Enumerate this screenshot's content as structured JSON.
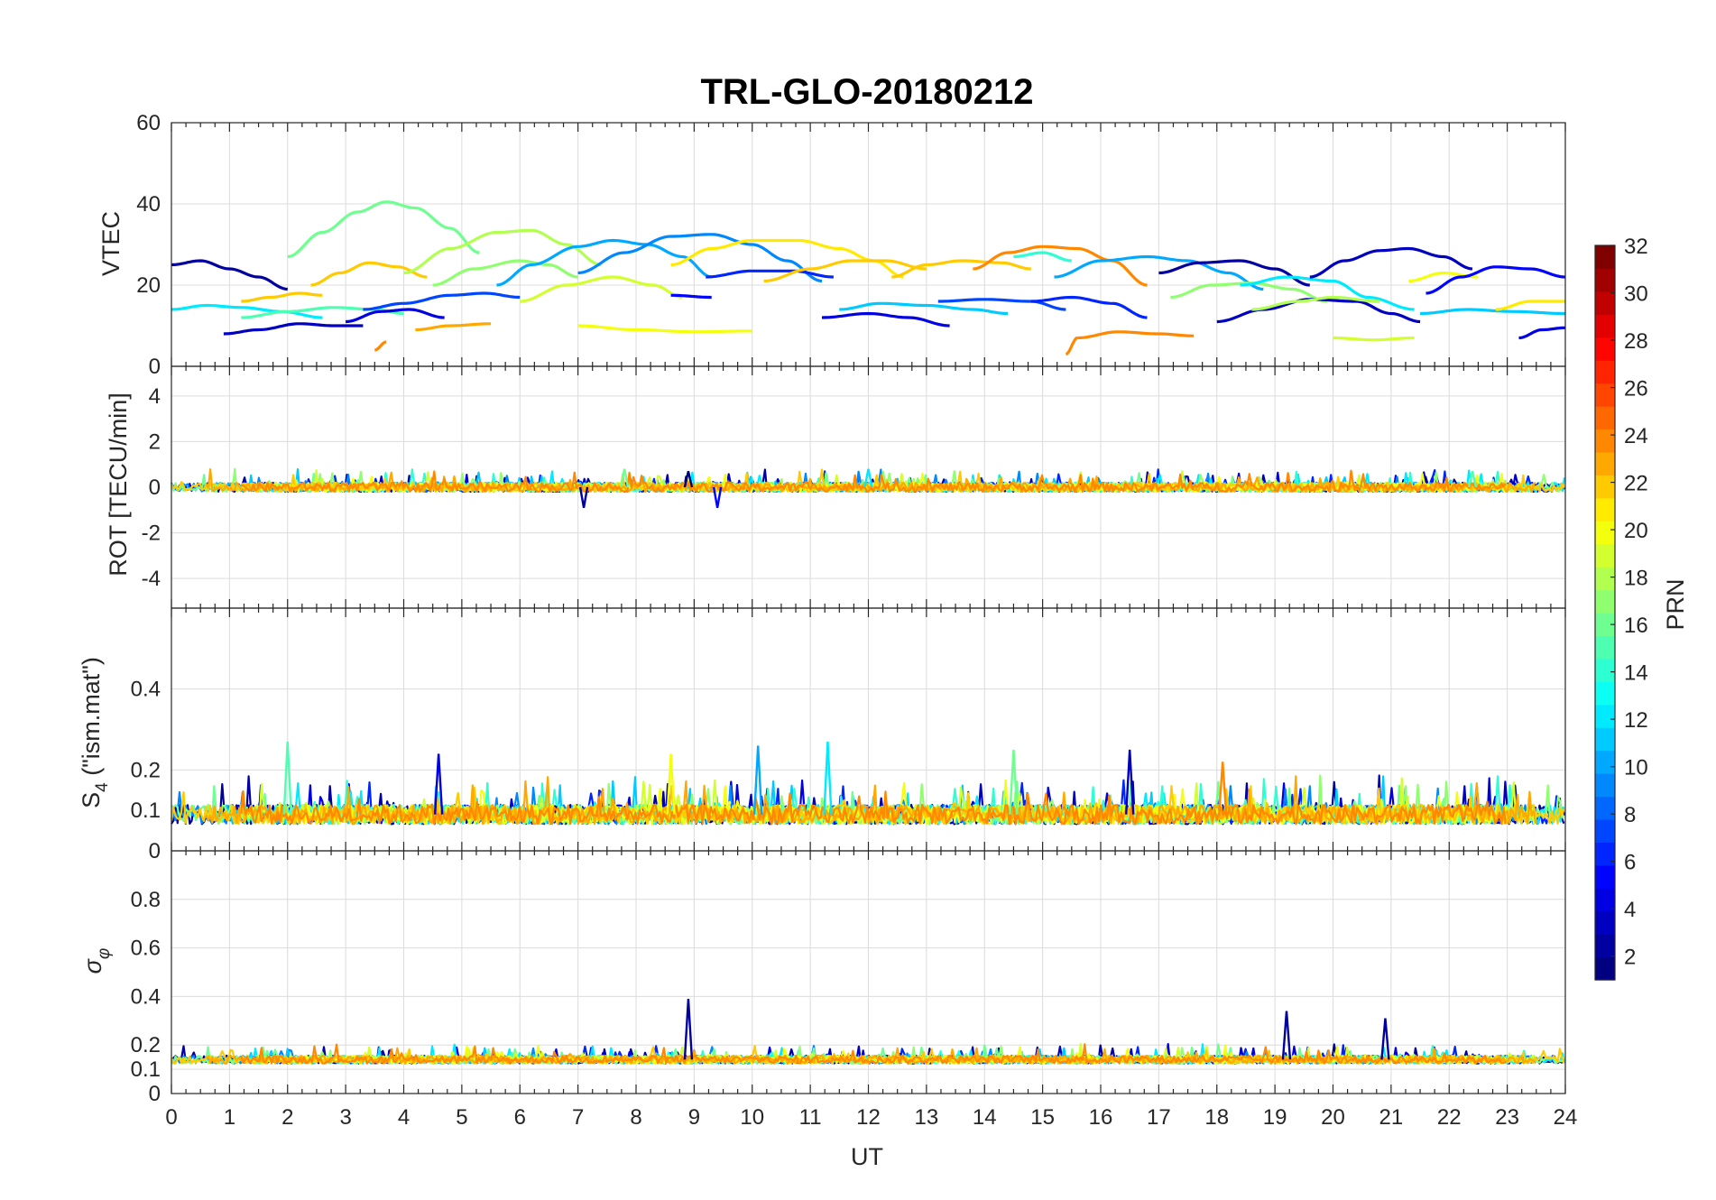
{
  "chart_data": {
    "type": "line",
    "title": "TRL-GLO-20180212",
    "x": {
      "label": "UT",
      "range": [
        0,
        24
      ],
      "ticks": [
        "0",
        "1",
        "2",
        "3",
        "4",
        "5",
        "6",
        "7",
        "8",
        "9",
        "10",
        "11",
        "12",
        "13",
        "14",
        "15",
        "16",
        "17",
        "18",
        "19",
        "20",
        "21",
        "22",
        "23",
        "24"
      ]
    },
    "colorbar": {
      "label": "PRN",
      "range": [
        1,
        32
      ],
      "ticks": [
        "2",
        "4",
        "6",
        "8",
        "10",
        "12",
        "14",
        "16",
        "18",
        "20",
        "22",
        "24",
        "26",
        "28",
        "30",
        "32"
      ],
      "colormap": "jet"
    },
    "panels": [
      {
        "name": "vtec",
        "ylabel": "VTEC",
        "ylim": [
          0,
          60
        ],
        "yticks": [
          "0",
          "20",
          "40",
          "60"
        ],
        "series": [
          {
            "prn": 2,
            "t": [
              0,
              0.5,
              1.0,
              1.5,
              2.0
            ],
            "y": [
              25,
              26,
              24,
              22,
              19
            ]
          },
          {
            "prn": 3,
            "t": [
              0.9,
              1.5,
              2.2,
              2.8,
              3.3
            ],
            "y": [
              8,
              9,
              10.5,
              10,
              10
            ]
          },
          {
            "prn": 12,
            "t": [
              0,
              0.6,
              1.2,
              1.9,
              2.6
            ],
            "y": [
              14,
              15,
              14.5,
              13.5,
              12
            ]
          },
          {
            "prn": 15,
            "t": [
              1.2,
              2.0,
              2.8,
              3.5,
              4.0
            ],
            "y": [
              12,
              13.5,
              14.5,
              14,
              13
            ]
          },
          {
            "prn": 22,
            "t": [
              1.2,
              1.7,
              2.2,
              2.6
            ],
            "y": [
              16,
              17,
              18,
              17.5
            ]
          },
          {
            "prn": 16,
            "t": [
              2.0,
              2.6,
              3.2,
              3.7,
              4.2,
              4.8,
              5.3
            ],
            "y": [
              27,
              33,
              38,
              40.5,
              39,
              34,
              28
            ]
          },
          {
            "prn": 22,
            "t": [
              2.4,
              2.9,
              3.4,
              3.9,
              4.4
            ],
            "y": [
              20,
              23,
              25.5,
              24.5,
              22
            ]
          },
          {
            "prn": 4,
            "t": [
              3.0,
              3.6,
              4.1,
              4.7
            ],
            "y": [
              11,
              13.5,
              14,
              12
            ]
          },
          {
            "prn": 23,
            "t": [
              4.2,
              4.8,
              5.5
            ],
            "y": [
              9,
              10,
              10.5
            ]
          },
          {
            "prn": 24,
            "t": [
              3.5,
              3.7
            ],
            "y": [
              4,
              6
            ]
          },
          {
            "prn": 7,
            "t": [
              3.3,
              4.0,
              4.8,
              5.4,
              6.0
            ],
            "y": [
              14,
              15.5,
              17.5,
              18,
              17
            ]
          },
          {
            "prn": 18,
            "t": [
              4.0,
              4.8,
              5.6,
              6.2,
              6.8,
              7.4
            ],
            "y": [
              23,
              29,
              33,
              33.5,
              30,
              25
            ]
          },
          {
            "prn": 17,
            "t": [
              4.5,
              5.2,
              6.0,
              6.5,
              7.0
            ],
            "y": [
              20,
              24,
              26,
              25,
              22
            ]
          },
          {
            "prn": 10,
            "t": [
              5.6,
              6.2,
              7.0,
              7.6,
              8.2,
              8.8,
              9.3
            ],
            "y": [
              20,
              25,
              29.5,
              31,
              30,
              27,
              22
            ]
          },
          {
            "prn": 19,
            "t": [
              6.0,
              6.8,
              7.6,
              8.3,
              8.8
            ],
            "y": [
              16,
              20,
              22,
              20,
              17
            ]
          },
          {
            "prn": 9,
            "t": [
              7.0,
              7.8,
              8.6,
              9.3,
              10.0,
              10.6,
              11.2
            ],
            "y": [
              23,
              28,
              32,
              32.5,
              30,
              26,
              21
            ]
          },
          {
            "prn": 20,
            "t": [
              7.0,
              8.0,
              9.0,
              10.0
            ],
            "y": [
              10,
              9,
              8.5,
              8.7
            ]
          },
          {
            "prn": 5,
            "t": [
              8.6,
              9.3
            ],
            "y": [
              17.5,
              17
            ]
          },
          {
            "prn": 21,
            "t": [
              8.6,
              9.3,
              10.0,
              10.8,
              11.5,
              12.1,
              12.6
            ],
            "y": [
              25,
              29,
              31,
              31,
              29,
              26,
              22
            ]
          },
          {
            "prn": 6,
            "t": [
              9.2,
              10.0,
              10.7,
              11.4
            ],
            "y": [
              22,
              23.5,
              23.5,
              22
            ]
          },
          {
            "prn": 22,
            "t": [
              10.2,
              11.0,
              11.7,
              12.3,
              13.0
            ],
            "y": [
              21,
              24,
              26,
              26,
              24
            ]
          },
          {
            "prn": 4,
            "t": [
              11.2,
              12.0,
              12.7,
              13.4
            ],
            "y": [
              12,
              13,
              12,
              10
            ]
          },
          {
            "prn": 11,
            "t": [
              11.5,
              12.2,
              13.0,
              13.8,
              14.4
            ],
            "y": [
              14,
              15.5,
              15,
              14,
              13
            ]
          },
          {
            "prn": 22,
            "t": [
              12.4,
              13.0,
              13.6,
              14.3,
              14.8
            ],
            "y": [
              22,
              25,
              26,
              25.5,
              24
            ]
          },
          {
            "prn": 7,
            "t": [
              13.2,
              14.0,
              14.8,
              15.4
            ],
            "y": [
              16,
              16.5,
              16,
              14
            ]
          },
          {
            "prn": 24,
            "t": [
              13.8,
              14.4,
              15.0,
              15.6,
              16.2,
              16.8
            ],
            "y": [
              24,
              28,
              29.5,
              29,
              26,
              20
            ]
          },
          {
            "prn": 14,
            "t": [
              14.5,
              15.0,
              15.5
            ],
            "y": [
              27,
              28,
              26
            ]
          },
          {
            "prn": 10,
            "t": [
              15.2,
              16.0,
              16.8,
              17.5,
              18.2,
              18.8
            ],
            "y": [
              22,
              26,
              27,
              26,
              23,
              19
            ]
          },
          {
            "prn": 24,
            "t": [
              15.4,
              15.6
            ],
            "y": [
              3,
              7
            ]
          },
          {
            "prn": 24,
            "t": [
              15.6,
              16.3,
              17.0,
              17.6
            ],
            "y": [
              7,
              8.5,
              8,
              7.5
            ]
          },
          {
            "prn": 6,
            "t": [
              14.8,
              15.5,
              16.2,
              16.8
            ],
            "y": [
              16,
              17,
              15.5,
              12
            ]
          },
          {
            "prn": 2,
            "t": [
              17.0,
              17.7,
              18.4,
              19.0,
              19.6
            ],
            "y": [
              23,
              25.5,
              26,
              24,
              20
            ]
          },
          {
            "prn": 17,
            "t": [
              17.2,
              17.9,
              18.6,
              19.3,
              19.9
            ],
            "y": [
              17,
              20,
              20.5,
              19,
              16
            ]
          },
          {
            "prn": 3,
            "t": [
              18.0,
              18.8,
              19.6,
              20.4,
              21.0,
              21.5
            ],
            "y": [
              11,
              14,
              16.5,
              16,
              13,
              11
            ]
          },
          {
            "prn": 12,
            "t": [
              18.4,
              19.2,
              20.0,
              20.6,
              21.4
            ],
            "y": [
              20,
              22,
              21,
              17,
              14
            ]
          },
          {
            "prn": 18,
            "t": [
              18.6,
              19.4,
              20.0,
              20.8
            ],
            "y": [
              14,
              16,
              17,
              16
            ]
          },
          {
            "prn": 3,
            "t": [
              19.6,
              20.2,
              20.8,
              21.3,
              21.9,
              22.4
            ],
            "y": [
              22,
              26,
              28.5,
              29,
              27,
              24
            ]
          },
          {
            "prn": 19,
            "t": [
              20.0,
              20.7,
              21.4
            ],
            "y": [
              7,
              6.5,
              7
            ]
          },
          {
            "prn": 20,
            "t": [
              21.3,
              21.9,
              22.5
            ],
            "y": [
              21,
              23,
              22
            ]
          },
          {
            "prn": 11,
            "t": [
              21.5,
              22.3,
              23.1,
              24.0
            ],
            "y": [
              13,
              14,
              13.5,
              13
            ]
          },
          {
            "prn": 5,
            "t": [
              21.6,
              22.2,
              22.8,
              23.4,
              24.0
            ],
            "y": [
              18,
              22,
              24.5,
              24,
              22
            ]
          },
          {
            "prn": 21,
            "t": [
              22.8,
              23.4,
              24.0
            ],
            "y": [
              14,
              16,
              16
            ]
          },
          {
            "prn": 4,
            "t": [
              23.2,
              23.6,
              24.0
            ],
            "y": [
              7,
              9,
              9.5
            ]
          }
        ]
      },
      {
        "name": "rot",
        "ylabel": "ROT [TECU/min]",
        "ylim": [
          -5.3,
          5.3
        ],
        "yticks": [
          "-4",
          "-2",
          "0",
          "2",
          "4"
        ],
        "noise": {
          "center": 0.0,
          "spread": 0.25,
          "spikes": [
            {
              "t": 7.8,
              "prn": 16,
              "v": 0.8
            },
            {
              "t": 8.9,
              "prn": 1,
              "v": 0.7
            },
            {
              "t": 12.0,
              "prn": 12,
              "v": 0.8
            },
            {
              "t": 7.1,
              "prn": 2,
              "v": -0.9
            },
            {
              "t": 9.4,
              "prn": 5,
              "v": -0.9
            },
            {
              "t": 22.4,
              "prn": 15,
              "v": 0.7
            }
          ]
        }
      },
      {
        "name": "s4",
        "ylabel": "S4 (\"ism.mat\")",
        "ylim": [
          0,
          0.6
        ],
        "yticks": [
          "0",
          "0.1",
          "0.2",
          "0.4"
        ],
        "noise": {
          "center": 0.09,
          "spread": 0.03,
          "spikes": [
            {
              "t": 2.0,
              "prn": 15,
              "v": 0.27
            },
            {
              "t": 16.5,
              "prn": 3,
              "v": 0.25
            },
            {
              "t": 11.3,
              "prn": 12,
              "v": 0.27
            },
            {
              "t": 10.1,
              "prn": 10,
              "v": 0.26
            },
            {
              "t": 8.6,
              "prn": 20,
              "v": 0.24
            },
            {
              "t": 4.6,
              "prn": 4,
              "v": 0.24
            },
            {
              "t": 14.5,
              "prn": 16,
              "v": 0.25
            },
            {
              "t": 18.1,
              "prn": 24,
              "v": 0.22
            }
          ]
        }
      },
      {
        "name": "sigma_phi",
        "ylabel": "σφ",
        "ylim": [
          0,
          1
        ],
        "yticks": [
          "0",
          "0.1",
          "0.2",
          "0.4",
          "0.6",
          "0.8"
        ],
        "noise": {
          "center": 0.14,
          "spread": 0.02,
          "spikes": [
            {
              "t": 8.9,
              "prn": 2,
              "v": 0.39
            },
            {
              "t": 19.2,
              "prn": 2,
              "v": 0.34
            },
            {
              "t": 20.9,
              "prn": 2,
              "v": 0.31
            }
          ]
        }
      }
    ]
  }
}
